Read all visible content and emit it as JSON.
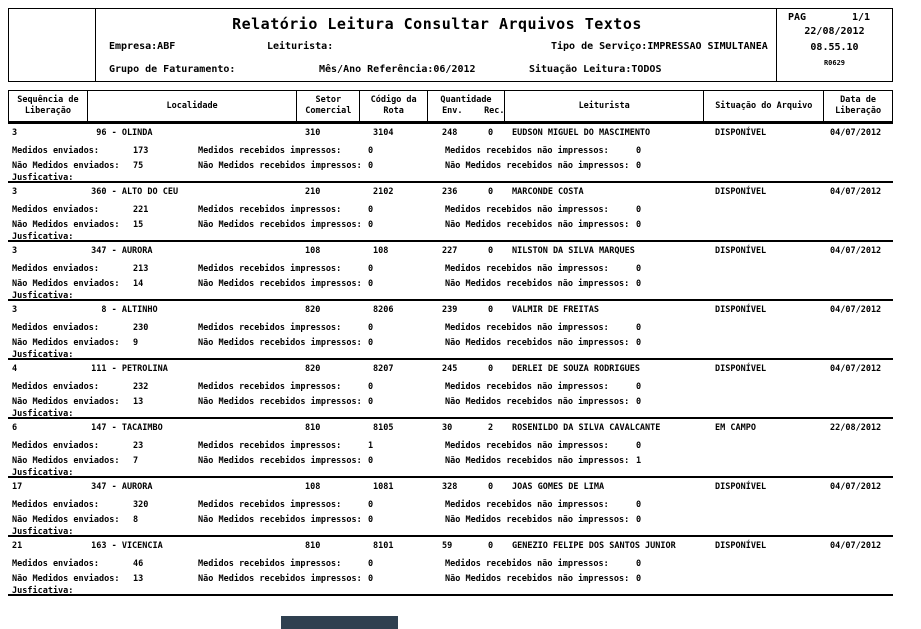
{
  "header": {
    "title": "Relatório Leitura Consultar Arquivos Textos",
    "empresa_label": "Empresa:",
    "empresa_value": "ABF",
    "leiturista_label": "Leiturista:",
    "leiturista_value": "",
    "tipo_servico_label": "Tipo de Serviço:",
    "tipo_servico_value": "IMPRESSAO SIMULTANEA",
    "grupo_faturamento_label": "Grupo de Faturamento:",
    "grupo_faturamento_value": "",
    "mes_ano_label": "Mês/Ano Referência:",
    "mes_ano_value": "06/2012",
    "situacao_leitura_label": "Situação Leitura:",
    "situacao_leitura_value": "TODOS",
    "pag_label": "PAG",
    "page": "1/1",
    "date": "22/08/2012",
    "time": "08.55.10",
    "report_code": "R0629"
  },
  "table_header": {
    "sequencia_line1": "Sequência de",
    "sequencia_line2": "Liberação",
    "localidade": "Localidade",
    "setor_line1": "Setor",
    "setor_line2": "Comercial",
    "codigo_line1": "Código da",
    "codigo_line2": "Rota",
    "quantidade": "Quantidade",
    "env": "Env.",
    "rec": "Rec.",
    "leiturista": "Leiturista",
    "situacao_arquivo": "Situação do Arquivo",
    "data_line1": "Data de",
    "data_line2": "Liberação"
  },
  "labels": {
    "medidos_enviados": "Medidos enviados:",
    "medidos_recebidos_impressos": "Medidos recebidos impressos:",
    "medidos_recebidos_nao_impressos": "Medidos recebidos não impressos:",
    "nao_medidos_enviados": "Não Medidos enviados:",
    "nao_medidos_recebidos_impressos": "Não Medidos recebidos impressos:",
    "nao_medidos_recebidos_nao_impressos": "Não Medidos recebidos não impressos:",
    "justificativa": "Jusficativa:"
  },
  "records": [
    {
      "seq": "3",
      "localidade": "  96 - OLINDA",
      "setor": "310",
      "codigo": "3104",
      "env": "248",
      "rec": "0",
      "leiturista": "EUDSON MIGUEL DO MASCIMENTO",
      "situacao": "DISPONÍVEL",
      "data": "04/07/2012",
      "me": "173",
      "mri": "0",
      "mrni": "0",
      "nme": "75",
      "nmri": "0",
      "nmrni": "0"
    },
    {
      "seq": "3",
      "localidade": " 360 - ALTO DO CEU",
      "setor": "210",
      "codigo": "2102",
      "env": "236",
      "rec": "0",
      "leiturista": "MARCONDE COSTA",
      "situacao": "DISPONÍVEL",
      "data": "04/07/2012",
      "me": "221",
      "mri": "0",
      "mrni": "0",
      "nme": "15",
      "nmri": "0",
      "nmrni": "0"
    },
    {
      "seq": "3",
      "localidade": " 347 - AURORA",
      "setor": "108",
      "codigo": "108",
      "env": "227",
      "rec": "0",
      "leiturista": "NILSTON DA SILVA MARQUES",
      "situacao": "DISPONÍVEL",
      "data": "04/07/2012",
      "me": "213",
      "mri": "0",
      "mrni": "0",
      "nme": "14",
      "nmri": "0",
      "nmrni": "0"
    },
    {
      "seq": "3",
      "localidade": "   8 - ALTINHO",
      "setor": "820",
      "codigo": "8206",
      "env": "239",
      "rec": "0",
      "leiturista": "VALMIR DE FREITAS",
      "situacao": "DISPONÍVEL",
      "data": "04/07/2012",
      "me": "230",
      "mri": "0",
      "mrni": "0",
      "nme": "9",
      "nmri": "0",
      "nmrni": "0"
    },
    {
      "seq": "4",
      "localidade": " 111 - PETROLINA",
      "setor": "820",
      "codigo": "8207",
      "env": "245",
      "rec": "0",
      "leiturista": "DERLEI DE SOUZA RODRIGUES",
      "situacao": "DISPONÍVEL",
      "data": "04/07/2012",
      "me": "232",
      "mri": "0",
      "mrni": "0",
      "nme": "13",
      "nmri": "0",
      "nmrni": "0"
    },
    {
      "seq": "6",
      "localidade": " 147 - TACAIMBO",
      "setor": "810",
      "codigo": "8105",
      "env": "30",
      "rec": "2",
      "leiturista": "ROSENILDO DA SILVA CAVALCANTE",
      "situacao": "EM CAMPO",
      "data": "22/08/2012",
      "me": "23",
      "mri": "1",
      "mrni": "0",
      "nme": "7",
      "nmri": "0",
      "nmrni": "1"
    },
    {
      "seq": "17",
      "localidade": " 347 - AURORA",
      "setor": "108",
      "codigo": "1081",
      "env": "328",
      "rec": "0",
      "leiturista": "JOAS GOMES DE LIMA",
      "situacao": "DISPONÍVEL",
      "data": "04/07/2012",
      "me": "320",
      "mri": "0",
      "mrni": "0",
      "nme": "8",
      "nmri": "0",
      "nmrni": "0"
    },
    {
      "seq": "21",
      "localidade": " 163 - VICENCIA",
      "setor": "810",
      "codigo": "8101",
      "env": "59",
      "rec": "0",
      "leiturista": "GENEZIO FELIPE DOS SANTOS JUNIOR",
      "situacao": "DISPONÍVEL",
      "data": "04/07/2012",
      "me": "46",
      "mri": "0",
      "mrni": "0",
      "nme": "13",
      "nmri": "0",
      "nmrni": "0"
    }
  ],
  "taskbar": {
    "color": "#2f4050"
  }
}
